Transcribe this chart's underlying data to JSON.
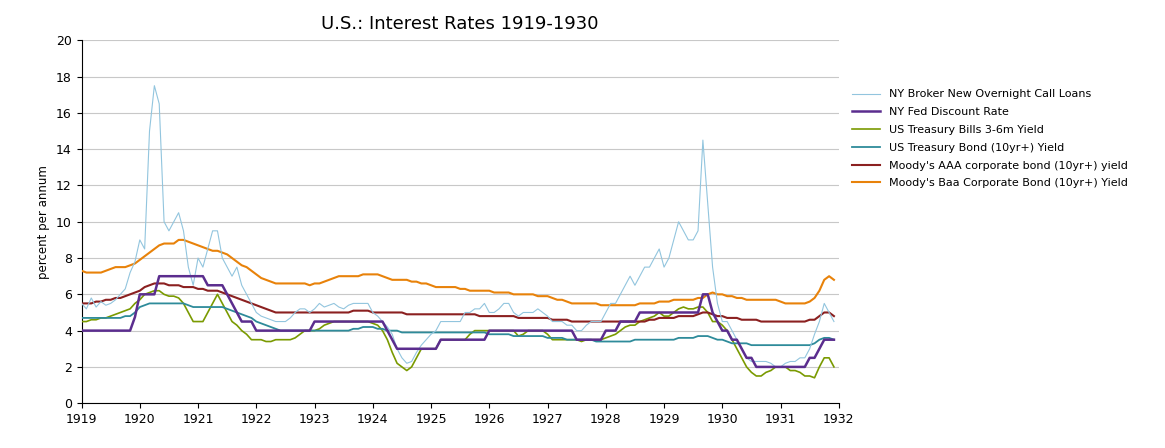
{
  "title": "U.S.: Interest Rates 1919-1930",
  "ylabel": "percent per annum",
  "ylim": [
    0,
    20
  ],
  "yticks": [
    0,
    2,
    4,
    6,
    8,
    10,
    12,
    14,
    16,
    18,
    20
  ],
  "xlim_start": 1919.0,
  "xlim_end": 1932.0,
  "xtick_years": [
    1919,
    1920,
    1921,
    1922,
    1923,
    1924,
    1925,
    1926,
    1927,
    1928,
    1929,
    1930,
    1931,
    1932
  ],
  "series": {
    "call_loans": {
      "label": "NY Broker New Overnight Call Loans",
      "color": "#92C5DE",
      "linewidth": 0.8,
      "zorder": 5
    },
    "fed_discount": {
      "label": "NY Fed Discount Rate",
      "color": "#5B2D8E",
      "linewidth": 1.8,
      "zorder": 6
    },
    "tbills": {
      "label": "US Treasury Bills 3-6m Yield",
      "color": "#7A9A01",
      "linewidth": 1.2,
      "zorder": 3
    },
    "tbond": {
      "label": "US Treasury Bond (10yr+) Yield",
      "color": "#2E8B9A",
      "linewidth": 1.3,
      "zorder": 3
    },
    "moody_aaa": {
      "label": "Moody's AAA corporate bond (10yr+) yield",
      "color": "#8B2020",
      "linewidth": 1.5,
      "zorder": 4
    },
    "moody_baa": {
      "label": "Moody's Baa Corporate Bond (10yr+) Yield",
      "color": "#E8820A",
      "linewidth": 1.5,
      "zorder": 4
    }
  },
  "background_color": "#FFFFFF",
  "grid_color": "#C8C8C8",
  "figure_width": 11.65,
  "figure_height": 4.48,
  "dpi": 100
}
